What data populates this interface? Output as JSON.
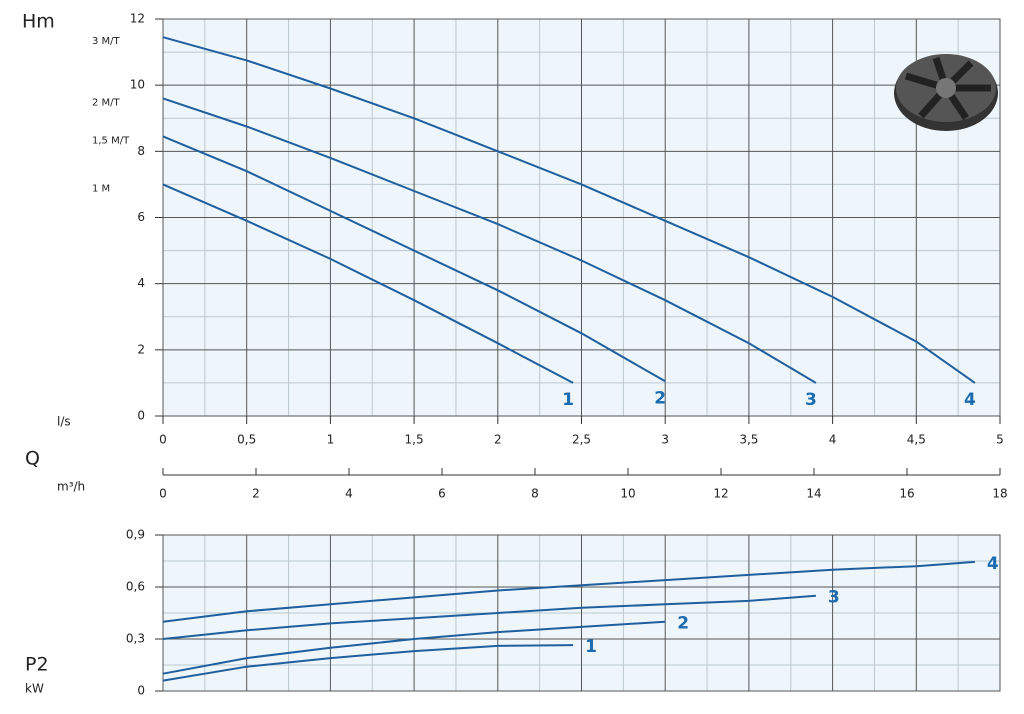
{
  "chart_data": [
    {
      "type": "line",
      "y_label": "Hm",
      "x_label": "l/s",
      "x_title": "Q",
      "x2_label": "m³/h",
      "xlim": [
        0,
        5
      ],
      "xticks": [
        0,
        {
          "value": 0.5,
          "label": "0,5"
        },
        1,
        {
          "value": 1.5,
          "label": "1,5"
        },
        2,
        {
          "value": 2.5,
          "label": "2,5"
        },
        3,
        {
          "value": 3.5,
          "label": "3,5"
        },
        4,
        {
          "value": 4.5,
          "label": "4,5"
        },
        5
      ],
      "x2lim": [
        0,
        18
      ],
      "x2ticks": [
        0,
        2,
        4,
        6,
        8,
        10,
        12,
        14,
        16,
        18
      ],
      "ylim": [
        0,
        12
      ],
      "yticks": [
        0,
        2,
        4,
        6,
        8,
        10,
        12
      ],
      "grid": true,
      "series": [
        {
          "name": "1",
          "model": "1 M",
          "color": "#1f5f9e",
          "x": [
            0,
            0.5,
            1,
            1.5,
            2,
            2.45
          ],
          "values": [
            7,
            5.9,
            4.75,
            3.5,
            2.2,
            1
          ]
        },
        {
          "name": "2",
          "model": "1,5 M/T",
          "color": "#1f5f9e",
          "x": [
            0,
            0.5,
            1,
            1.5,
            2,
            2.5,
            3
          ],
          "values": [
            8.45,
            7.4,
            6.2,
            5.0,
            3.8,
            2.5,
            1.05
          ]
        },
        {
          "name": "3",
          "model": "2 M/T",
          "color": "#1f5f9e",
          "x": [
            0,
            0.5,
            1,
            1.5,
            2,
            2.5,
            3,
            3.5,
            3.9
          ],
          "values": [
            9.6,
            8.75,
            7.8,
            6.8,
            5.8,
            4.7,
            3.5,
            2.2,
            1.0
          ]
        },
        {
          "name": "4",
          "model": "3 M/T",
          "color": "#1f5f9e",
          "x": [
            0,
            0.5,
            1,
            1.5,
            2,
            2.5,
            3,
            3.5,
            4,
            4.5,
            4.85
          ],
          "values": [
            11.45,
            10.75,
            9.9,
            9.0,
            8.0,
            7.0,
            5.9,
            4.8,
            3.6,
            2.25,
            1.0
          ]
        }
      ]
    },
    {
      "type": "line",
      "y_label": "P2",
      "y_unit": "kW",
      "xlim": [
        0,
        5
      ],
      "ylim": [
        0,
        0.9
      ],
      "yticks": [
        0,
        {
          "value": 0.3,
          "label": "0,3"
        },
        {
          "value": 0.6,
          "label": "0,6"
        },
        {
          "value": 0.9,
          "label": "0,9"
        }
      ],
      "grid": true,
      "series": [
        {
          "name": "1",
          "color": "#1f5f9e",
          "x": [
            0,
            0.5,
            1,
            1.5,
            2,
            2.45
          ],
          "values": [
            0.06,
            0.14,
            0.19,
            0.23,
            0.26,
            0.265
          ]
        },
        {
          "name": "2",
          "color": "#1f5f9e",
          "x": [
            0,
            0.5,
            1,
            1.5,
            2,
            2.5,
            3
          ],
          "values": [
            0.1,
            0.19,
            0.25,
            0.3,
            0.34,
            0.37,
            0.4
          ]
        },
        {
          "name": "3",
          "color": "#1f5f9e",
          "x": [
            0,
            0.5,
            1,
            1.5,
            2,
            2.5,
            3,
            3.5,
            3.9
          ],
          "values": [
            0.3,
            0.35,
            0.39,
            0.42,
            0.45,
            0.48,
            0.5,
            0.52,
            0.55
          ]
        },
        {
          "name": "4",
          "color": "#1f5f9e",
          "x": [
            0,
            0.5,
            1,
            1.5,
            2,
            2.5,
            3,
            3.5,
            4,
            4.5,
            4.85
          ],
          "values": [
            0.4,
            0.46,
            0.5,
            0.54,
            0.58,
            0.61,
            0.64,
            0.67,
            0.7,
            0.72,
            0.745
          ]
        }
      ]
    }
  ]
}
